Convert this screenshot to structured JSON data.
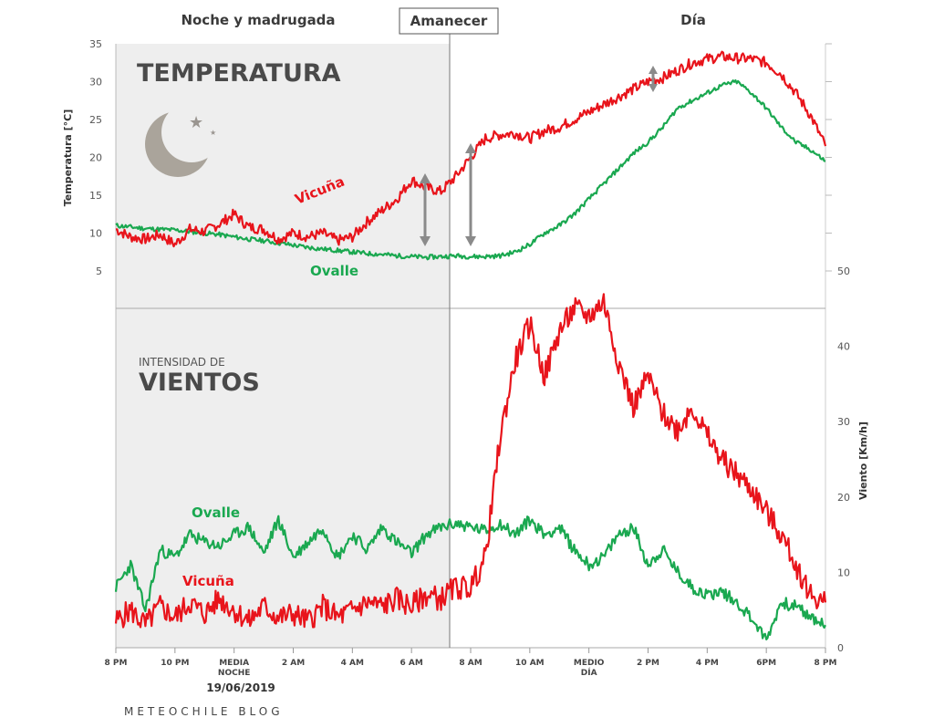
{
  "chart_data": [
    {
      "type": "line",
      "title": "TEMPERATURA",
      "ylabel": "Temperatura [°C]",
      "ylim": [
        3,
        35
      ],
      "yticks": [
        5,
        10,
        15,
        20,
        25,
        30,
        35
      ],
      "series": [
        {
          "name": "Vicuña",
          "color": "#e8141b",
          "x": [
            0,
            0.5,
            1,
            1.5,
            2,
            2.5,
            3,
            3.5,
            4,
            4.5,
            5,
            5.5,
            6,
            6.5,
            7,
            7.5,
            8,
            8.5,
            9,
            9.5,
            10,
            10.5,
            11,
            11.5,
            12,
            12.5,
            13,
            13.5,
            14,
            14.5,
            15,
            15.5,
            16,
            16.5,
            17,
            17.5,
            18,
            18.5,
            19,
            19.5,
            20,
            20.5,
            21,
            21.5,
            22,
            22.5,
            23,
            23.5,
            24
          ],
          "values": [
            10.5,
            9.5,
            9.2,
            9.8,
            8.5,
            10.5,
            10.2,
            11.2,
            12.5,
            10.8,
            10.5,
            9.2,
            10.0,
            9.5,
            10.0,
            9.0,
            9.5,
            11.5,
            13.0,
            14.5,
            17.0,
            16.0,
            15.5,
            17.5,
            20.0,
            22.5,
            23.0,
            23.2,
            22.5,
            23.5,
            24.0,
            25.0,
            26.0,
            27.0,
            28.0,
            29.0,
            30.0,
            30.5,
            31.5,
            32.5,
            33.0,
            33.3,
            33.1,
            33.0,
            32.5,
            31.0,
            28.5,
            25.5,
            21.5
          ]
        },
        {
          "name": "Ovalle",
          "color": "#1aa850",
          "x": [
            0,
            0.5,
            1,
            1.5,
            2,
            2.5,
            3,
            3.5,
            4,
            4.5,
            5,
            5.5,
            6,
            6.5,
            7,
            7.5,
            8,
            8.5,
            9,
            9.5,
            10,
            10.5,
            11,
            11.5,
            12,
            12.5,
            13,
            13.5,
            14,
            14.5,
            15,
            15.5,
            16,
            16.5,
            17,
            17.5,
            18,
            18.5,
            19,
            19.5,
            20,
            20.5,
            21,
            21.5,
            22,
            22.5,
            23,
            23.5,
            24
          ],
          "values": [
            11.0,
            10.8,
            10.6,
            10.5,
            10.4,
            10.2,
            10.0,
            9.8,
            9.5,
            9.2,
            9.0,
            8.7,
            8.4,
            8.1,
            7.9,
            7.7,
            7.5,
            7.3,
            7.2,
            7.0,
            6.9,
            6.8,
            6.9,
            7.0,
            6.9,
            6.9,
            7.0,
            7.5,
            8.5,
            10.0,
            11.0,
            12.5,
            14.5,
            16.5,
            18.5,
            20.5,
            22.0,
            24.0,
            26.5,
            27.5,
            28.5,
            29.5,
            30.0,
            28.5,
            26.5,
            24.0,
            22.0,
            21.0,
            19.5
          ]
        }
      ],
      "annotations": {
        "ovalle_label": "Ovalle",
        "vicuna_label": "Vicuña"
      }
    },
    {
      "type": "line",
      "title": "INTENSIDAD DE VIENTOS",
      "ylabel": "Viento [Km/h]",
      "ylim": [
        0,
        50
      ],
      "yticks": [
        0,
        10,
        20,
        30,
        40,
        50
      ],
      "series": [
        {
          "name": "Vicuña",
          "color": "#e8141b",
          "x": [
            0,
            0.5,
            1,
            1.5,
            2,
            2.5,
            3,
            3.5,
            4,
            4.5,
            5,
            5.5,
            6,
            6.5,
            7,
            7.5,
            8,
            8.5,
            9,
            9.5,
            10,
            10.5,
            11,
            11.5,
            12,
            12.5,
            13,
            13.5,
            14,
            14.5,
            15,
            15.5,
            16,
            16.5,
            17,
            17.5,
            18,
            18.5,
            19,
            19.5,
            20,
            20.5,
            21,
            21.5,
            22,
            22.5,
            23,
            23.5,
            24
          ],
          "values": [
            3.5,
            5.0,
            3.0,
            5.5,
            4.0,
            6.0,
            4.5,
            6.5,
            5.0,
            3.5,
            5.5,
            4.0,
            4.5,
            3.5,
            5.5,
            4.0,
            5.0,
            6.0,
            5.5,
            6.5,
            5.5,
            7.0,
            6.5,
            8.0,
            8.0,
            12.0,
            28.0,
            38.0,
            43.0,
            36.0,
            42.0,
            45.0,
            44.0,
            46.0,
            38.0,
            32.0,
            36.0,
            31.0,
            29.0,
            32.0,
            28.0,
            25.0,
            23.0,
            21.0,
            18.0,
            15.0,
            11.0,
            7.0,
            6.0
          ]
        },
        {
          "name": "Ovalle",
          "color": "#1aa850",
          "x": [
            0,
            0.5,
            1,
            1.5,
            2,
            2.5,
            3,
            3.5,
            4,
            4.5,
            5,
            5.5,
            6,
            6.5,
            7,
            7.5,
            8,
            8.5,
            9,
            9.5,
            10,
            10.5,
            11,
            11.5,
            12,
            12.5,
            13,
            13.5,
            14,
            14.5,
            15,
            15.5,
            16,
            16.5,
            17,
            17.5,
            18,
            18.5,
            19,
            19.5,
            20,
            20.5,
            21,
            21.5,
            22,
            22.5,
            23,
            23.5,
            24
          ],
          "values": [
            8.0,
            11.0,
            5.0,
            13.0,
            12.0,
            15.0,
            14.0,
            13.5,
            15.0,
            16.0,
            12.5,
            17.0,
            12.0,
            14.0,
            16.0,
            12.0,
            15.0,
            13.0,
            16.0,
            14.0,
            12.5,
            15.0,
            16.0,
            16.5,
            16.0,
            15.5,
            16.5,
            15.0,
            17.0,
            15.0,
            16.0,
            13.0,
            11.0,
            12.0,
            15.0,
            16.0,
            11.0,
            13.0,
            10.0,
            8.0,
            7.0,
            7.5,
            6.0,
            4.0,
            1.0,
            6.0,
            5.5,
            4.0,
            3.0
          ]
        }
      ],
      "annotations": {
        "ovalle_label": "Ovalle",
        "vicuna_label": "Vicuña"
      }
    }
  ],
  "sections": {
    "night": "Noche y madrugada",
    "sunrise": "Amanecer",
    "day": "Día"
  },
  "x_axis": {
    "ticks": [
      "8 PM",
      "10 PM",
      "MEDIA",
      "2 AM",
      "4 AM",
      "6 AM",
      "8 AM",
      "10 AM",
      "MEDIO",
      "2 PM",
      "4 PM",
      "6PM",
      "8 PM"
    ],
    "tick_line2": {
      "2": "NOCHE",
      "8": "DÍA"
    },
    "date": "19/06/2019"
  },
  "wind_title_small": "INTENSIDAD DE",
  "wind_title_big": "VIENTOS",
  "brand": "METEOCHILE BLOG",
  "icons": {
    "moon": "crescent-moon-icon",
    "stars": "star-icon"
  }
}
